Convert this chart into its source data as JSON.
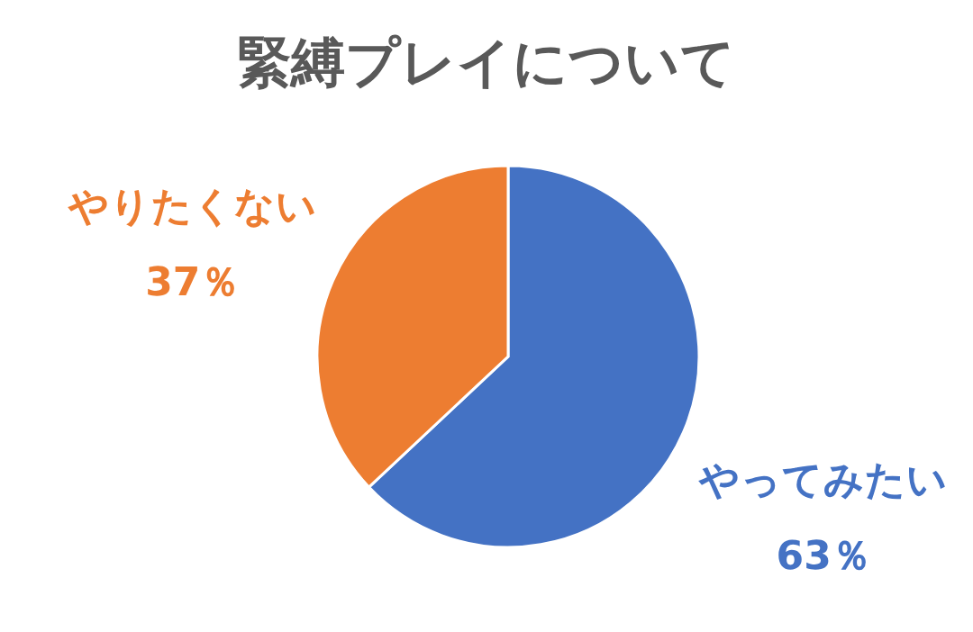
{
  "chart_data": {
    "type": "pie",
    "title": "緊縛プレイについて",
    "categories": [
      "やってみたい",
      "やりたくない"
    ],
    "values": [
      63,
      37
    ],
    "colors": [
      "#4472c4",
      "#ed7d31"
    ],
    "value_labels": [
      "63％",
      "37％"
    ]
  }
}
